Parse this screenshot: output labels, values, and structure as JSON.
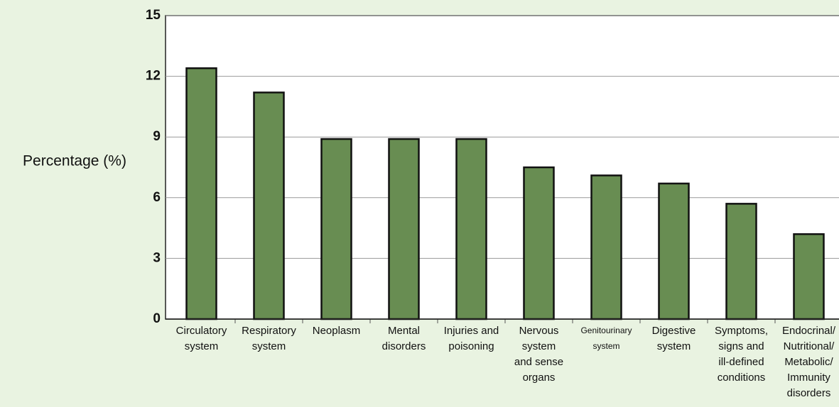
{
  "chart_data": {
    "type": "bar",
    "y_axis_label": "Percentage (%)",
    "categories": [
      [
        "Circulatory",
        "system"
      ],
      [
        "Respiratory",
        "system"
      ],
      [
        "Neoplasm"
      ],
      [
        "Mental",
        "disorders"
      ],
      [
        "Injuries and",
        "poisoning"
      ],
      [
        "Nervous",
        "system",
        "and sense",
        "organs"
      ],
      [
        "Genitourinary",
        "system"
      ],
      [
        "Digestive",
        "system"
      ],
      [
        "Symptoms,",
        "signs and",
        "ill-defined",
        "conditions"
      ],
      [
        "Endocrinal/",
        "Nutritional/",
        "Metabolic/",
        "Immunity",
        "disorders"
      ]
    ],
    "values": [
      12.4,
      11.2,
      8.9,
      8.9,
      8.9,
      7.5,
      7.1,
      6.7,
      5.7,
      4.2
    ],
    "color": "#688d52",
    "ylim": [
      0,
      15
    ],
    "yticks": [
      0,
      3,
      6,
      9,
      12,
      15
    ],
    "grid": true
  }
}
